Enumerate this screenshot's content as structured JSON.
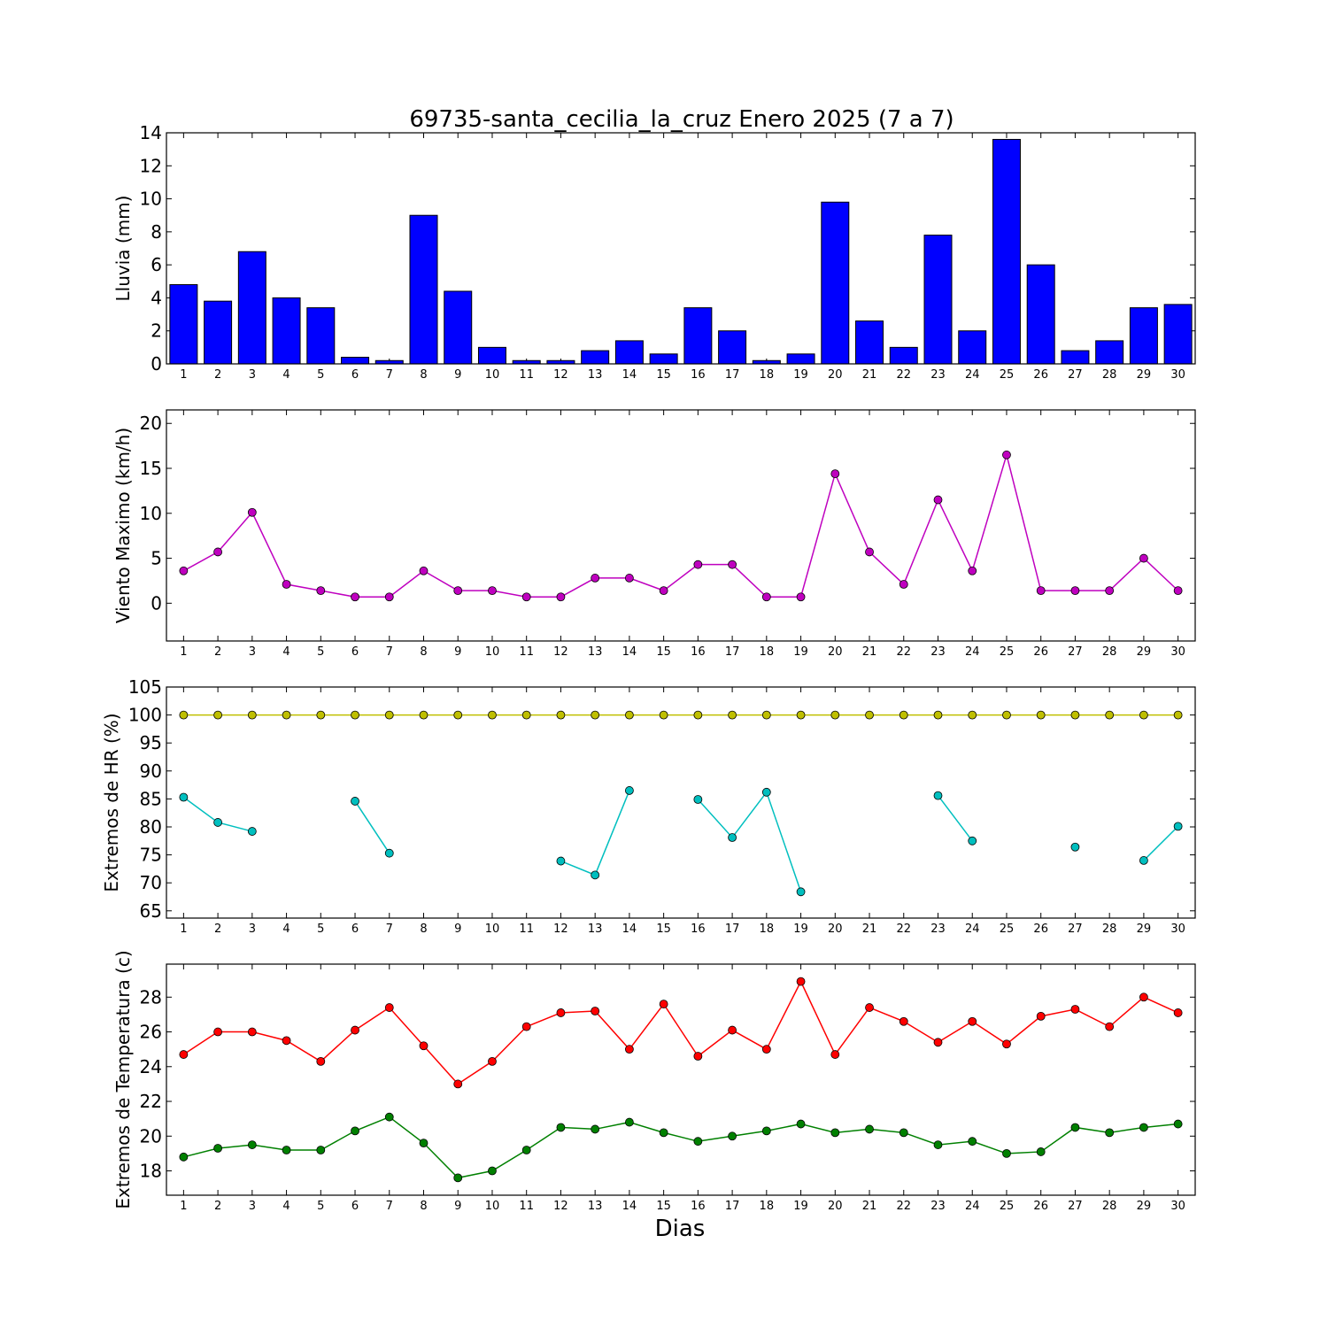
{
  "title": "69735-santa_cecilia_la_cruz Enero 2025  (7 a 7)",
  "xlabel": "Dias",
  "days": [
    "1",
    "2",
    "3",
    "4",
    "5",
    "6",
    "7",
    "8",
    "9",
    "10",
    "11",
    "12",
    "13",
    "14",
    "15",
    "16",
    "17",
    "18",
    "19",
    "20",
    "21",
    "22",
    "23",
    "24",
    "25",
    "26",
    "27",
    "28",
    "29",
    "30"
  ],
  "colors": {
    "bar": "#0000ff",
    "wind": "#bf00bf",
    "hr_max": "#bfbf00",
    "hr_min": "#00bfbf",
    "t_max": "#ff0000",
    "t_min": "#008000"
  },
  "chart_data": [
    {
      "type": "bar",
      "ylabel": "Lluvia (mm)",
      "ylim": [
        0,
        14
      ],
      "yticks": [
        0,
        2,
        4,
        6,
        8,
        10,
        12,
        14
      ],
      "categories": [
        "1",
        "2",
        "3",
        "4",
        "5",
        "6",
        "7",
        "8",
        "9",
        "10",
        "11",
        "12",
        "13",
        "14",
        "15",
        "16",
        "17",
        "18",
        "19",
        "20",
        "21",
        "22",
        "23",
        "24",
        "25",
        "26",
        "27",
        "28",
        "29",
        "30"
      ],
      "values": [
        4.8,
        3.8,
        6.8,
        4.0,
        3.4,
        0.4,
        0.2,
        9.0,
        4.4,
        1.0,
        0.2,
        0.2,
        0.8,
        1.4,
        0.6,
        3.4,
        2.0,
        0.2,
        0.6,
        9.8,
        2.6,
        1.0,
        7.8,
        2.0,
        13.6,
        6.0,
        0.8,
        1.4,
        3.4,
        3.6
      ]
    },
    {
      "type": "line",
      "ylabel": "Viento Maximo (km/h)",
      "ylim": [
        -4.2,
        21.5
      ],
      "yticks": [
        0,
        5,
        10,
        15,
        20
      ],
      "x": [
        1,
        2,
        3,
        4,
        5,
        6,
        7,
        8,
        9,
        10,
        11,
        12,
        13,
        14,
        15,
        16,
        17,
        18,
        19,
        20,
        21,
        22,
        23,
        24,
        25,
        26,
        27,
        28,
        29,
        30
      ],
      "series": [
        {
          "values": [
            3.6,
            5.7,
            10.1,
            2.1,
            1.4,
            0.7,
            0.7,
            3.6,
            1.4,
            1.4,
            0.7,
            0.7,
            2.8,
            2.8,
            1.4,
            4.3,
            4.3,
            0.7,
            0.7,
            14.4,
            5.7,
            2.1,
            11.5,
            3.6,
            16.5,
            1.4,
            1.4,
            1.4,
            5.0,
            1.4
          ]
        }
      ]
    },
    {
      "type": "line",
      "ylabel": "Extremos de HR (%)",
      "ylim": [
        63.7,
        105
      ],
      "yticks": [
        65,
        70,
        75,
        80,
        85,
        90,
        95,
        100,
        105
      ],
      "x": [
        1,
        2,
        3,
        4,
        5,
        6,
        7,
        8,
        9,
        10,
        11,
        12,
        13,
        14,
        15,
        16,
        17,
        18,
        19,
        20,
        21,
        22,
        23,
        24,
        25,
        26,
        27,
        28,
        29,
        30
      ],
      "series": [
        {
          "values": [
            100,
            100,
            100,
            100,
            100,
            100,
            100,
            100,
            100,
            100,
            100,
            100,
            100,
            100,
            100,
            100,
            100,
            100,
            100,
            100,
            100,
            100,
            100,
            100,
            100,
            100,
            100,
            100,
            100,
            100
          ]
        },
        {
          "values": [
            85.3,
            80.8,
            79.2,
            null,
            null,
            84.6,
            75.3,
            null,
            null,
            null,
            null,
            73.9,
            71.4,
            86.5,
            null,
            84.9,
            78.1,
            86.2,
            68.4,
            null,
            null,
            null,
            85.6,
            77.5,
            null,
            null,
            76.4,
            null,
            74.0,
            80.1
          ]
        }
      ]
    },
    {
      "type": "line",
      "ylabel": "Extremos de Temperatura (c)",
      "ylim": [
        16.6,
        29.9
      ],
      "yticks": [
        18,
        20,
        22,
        24,
        26,
        28
      ],
      "x": [
        1,
        2,
        3,
        4,
        5,
        6,
        7,
        8,
        9,
        10,
        11,
        12,
        13,
        14,
        15,
        16,
        17,
        18,
        19,
        20,
        21,
        22,
        23,
        24,
        25,
        26,
        27,
        28,
        29,
        30
      ],
      "series": [
        {
          "values": [
            24.7,
            26.0,
            26.0,
            25.5,
            24.3,
            26.1,
            27.4,
            25.2,
            23.0,
            24.3,
            26.3,
            27.1,
            27.2,
            25.0,
            27.6,
            24.6,
            26.1,
            25.0,
            28.9,
            24.7,
            27.4,
            26.6,
            25.4,
            26.6,
            25.3,
            26.9,
            27.3,
            26.3,
            28.0,
            27.1
          ]
        },
        {
          "values": [
            18.8,
            19.3,
            19.5,
            19.2,
            19.2,
            20.3,
            21.1,
            19.6,
            17.6,
            18.0,
            19.2,
            20.5,
            20.4,
            20.8,
            20.2,
            19.7,
            20.0,
            20.3,
            20.7,
            20.2,
            20.4,
            20.2,
            19.5,
            19.7,
            19.0,
            19.1,
            20.5,
            20.2,
            20.5,
            20.7
          ]
        }
      ]
    }
  ]
}
